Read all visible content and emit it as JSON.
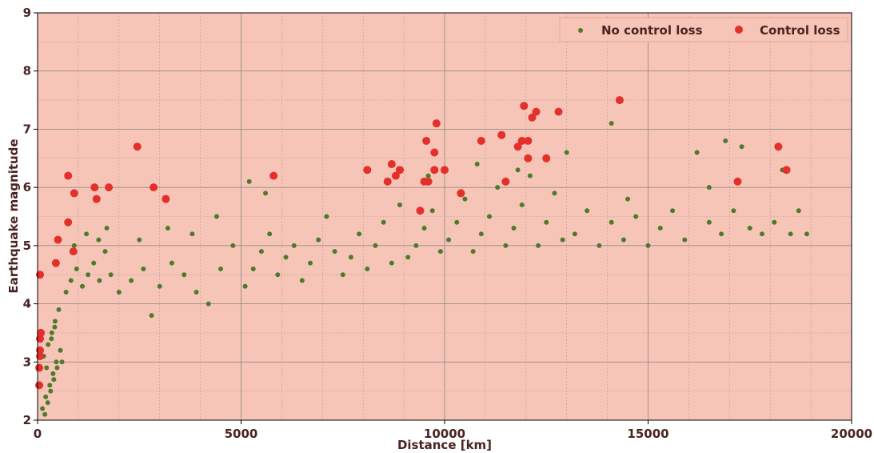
{
  "chart_data": {
    "type": "scatter",
    "title": "",
    "xlabel": "Distance [km]",
    "ylabel": "Earthquake magnitude",
    "xlim": [
      0,
      20000
    ],
    "ylim": [
      2,
      9
    ],
    "xticks": [
      "0",
      "5000",
      "10000",
      "15000",
      "20000"
    ],
    "yticks": [
      "2",
      "3",
      "4",
      "5",
      "6",
      "7",
      "8",
      "9"
    ],
    "grid": true,
    "legend_position": "top-right",
    "background_color": "#f6c5b7",
    "series": [
      {
        "name": "No control loss",
        "color": "#4f7a2c",
        "points": [
          [
            180,
            2.1
          ],
          [
            250,
            2.3
          ],
          [
            320,
            2.5
          ],
          [
            400,
            2.7
          ],
          [
            480,
            2.9
          ],
          [
            150,
            3.1
          ],
          [
            260,
            3.3
          ],
          [
            350,
            3.5
          ],
          [
            430,
            3.7
          ],
          [
            520,
            3.9
          ],
          [
            200,
            2.4
          ],
          [
            300,
            2.6
          ],
          [
            380,
            2.8
          ],
          [
            460,
            3.0
          ],
          [
            560,
            3.2
          ],
          [
            120,
            2.2
          ],
          [
            220,
            2.9
          ],
          [
            340,
            3.4
          ],
          [
            420,
            3.6
          ],
          [
            600,
            3.0
          ],
          [
            700,
            4.2
          ],
          [
            820,
            4.4
          ],
          [
            960,
            4.6
          ],
          [
            1100,
            4.3
          ],
          [
            1240,
            4.5
          ],
          [
            1380,
            4.7
          ],
          [
            1520,
            4.4
          ],
          [
            1660,
            4.9
          ],
          [
            1800,
            4.5
          ],
          [
            900,
            5.0
          ],
          [
            1200,
            5.2
          ],
          [
            1500,
            5.1
          ],
          [
            1700,
            5.3
          ],
          [
            2000,
            4.2
          ],
          [
            2300,
            4.4
          ],
          [
            2600,
            4.6
          ],
          [
            2800,
            3.8
          ],
          [
            3000,
            4.3
          ],
          [
            3300,
            4.7
          ],
          [
            3600,
            4.5
          ],
          [
            3900,
            4.2
          ],
          [
            4200,
            4.0
          ],
          [
            4500,
            4.6
          ],
          [
            4800,
            5.0
          ],
          [
            2500,
            5.1
          ],
          [
            3200,
            5.3
          ],
          [
            3800,
            5.2
          ],
          [
            4400,
            5.5
          ],
          [
            5100,
            4.3
          ],
          [
            5300,
            4.6
          ],
          [
            5500,
            4.9
          ],
          [
            5700,
            5.2
          ],
          [
            5900,
            4.5
          ],
          [
            6100,
            4.8
          ],
          [
            6300,
            5.0
          ],
          [
            6500,
            4.4
          ],
          [
            6700,
            4.7
          ],
          [
            6900,
            5.1
          ],
          [
            7100,
            5.5
          ],
          [
            5600,
            5.9
          ],
          [
            5200,
            6.1
          ],
          [
            7300,
            4.9
          ],
          [
            7500,
            4.5
          ],
          [
            7700,
            4.8
          ],
          [
            7900,
            5.2
          ],
          [
            8100,
            4.6
          ],
          [
            8300,
            5.0
          ],
          [
            8500,
            5.4
          ],
          [
            8700,
            4.7
          ],
          [
            8900,
            5.7
          ],
          [
            9100,
            4.8
          ],
          [
            9300,
            5.0
          ],
          [
            9500,
            5.3
          ],
          [
            9700,
            5.6
          ],
          [
            9900,
            4.9
          ],
          [
            10100,
            5.1
          ],
          [
            10300,
            5.4
          ],
          [
            10500,
            5.8
          ],
          [
            10700,
            4.9
          ],
          [
            10900,
            5.2
          ],
          [
            11100,
            5.5
          ],
          [
            11300,
            6.0
          ],
          [
            11500,
            5.0
          ],
          [
            11700,
            5.3
          ],
          [
            11900,
            5.7
          ],
          [
            12100,
            6.2
          ],
          [
            12300,
            5.0
          ],
          [
            12500,
            5.4
          ],
          [
            12700,
            5.9
          ],
          [
            12900,
            5.1
          ],
          [
            13000,
            6.6
          ],
          [
            13200,
            5.2
          ],
          [
            13500,
            5.6
          ],
          [
            13800,
            5.0
          ],
          [
            14100,
            5.4
          ],
          [
            14100,
            7.1
          ],
          [
            14400,
            5.1
          ],
          [
            14700,
            5.5
          ],
          [
            15000,
            5.0
          ],
          [
            15300,
            5.3
          ],
          [
            15600,
            5.6
          ],
          [
            15900,
            5.1
          ],
          [
            16200,
            6.6
          ],
          [
            16500,
            5.4
          ],
          [
            16800,
            5.2
          ],
          [
            16900,
            6.8
          ],
          [
            17100,
            5.6
          ],
          [
            17300,
            6.7
          ],
          [
            17500,
            5.3
          ],
          [
            17800,
            5.2
          ],
          [
            18100,
            5.4
          ],
          [
            18300,
            6.3
          ],
          [
            18500,
            5.2
          ],
          [
            18700,
            5.6
          ],
          [
            18900,
            5.2
          ],
          [
            9600,
            6.2
          ],
          [
            10800,
            6.4
          ],
          [
            11800,
            6.3
          ],
          [
            16500,
            6.0
          ],
          [
            14500,
            5.8
          ]
        ]
      },
      {
        "name": "Control loss",
        "color": "#e3302a",
        "points": [
          [
            60,
            4.5
          ],
          [
            80,
            3.5
          ],
          [
            60,
            3.4
          ],
          [
            60,
            3.2
          ],
          [
            60,
            3.1
          ],
          [
            40,
            2.9
          ],
          [
            40,
            2.6
          ],
          [
            500,
            5.1
          ],
          [
            450,
            4.7
          ],
          [
            750,
            6.2
          ],
          [
            750,
            5.4
          ],
          [
            900,
            5.9
          ],
          [
            880,
            4.9
          ],
          [
            1400,
            6.0
          ],
          [
            1450,
            5.8
          ],
          [
            1750,
            6.0
          ],
          [
            2450,
            6.7
          ],
          [
            2850,
            6.0
          ],
          [
            3150,
            5.8
          ],
          [
            5800,
            6.2
          ],
          [
            8100,
            6.3
          ],
          [
            8600,
            6.1
          ],
          [
            8700,
            6.4
          ],
          [
            8800,
            6.2
          ],
          [
            8900,
            6.3
          ],
          [
            9400,
            5.6
          ],
          [
            9500,
            6.1
          ],
          [
            9550,
            6.8
          ],
          [
            9600,
            6.1
          ],
          [
            9750,
            6.3
          ],
          [
            9750,
            6.6
          ],
          [
            9800,
            7.1
          ],
          [
            10000,
            6.3
          ],
          [
            10400,
            5.9
          ],
          [
            10900,
            6.8
          ],
          [
            11400,
            6.9
          ],
          [
            11500,
            6.1
          ],
          [
            11800,
            6.7
          ],
          [
            11900,
            6.8
          ],
          [
            11950,
            7.4
          ],
          [
            12050,
            6.8
          ],
          [
            12050,
            6.5
          ],
          [
            12150,
            7.2
          ],
          [
            12250,
            7.3
          ],
          [
            12500,
            6.5
          ],
          [
            12800,
            7.3
          ],
          [
            14300,
            7.5
          ],
          [
            17200,
            6.1
          ],
          [
            18200,
            6.7
          ],
          [
            18400,
            6.3
          ]
        ]
      }
    ]
  }
}
